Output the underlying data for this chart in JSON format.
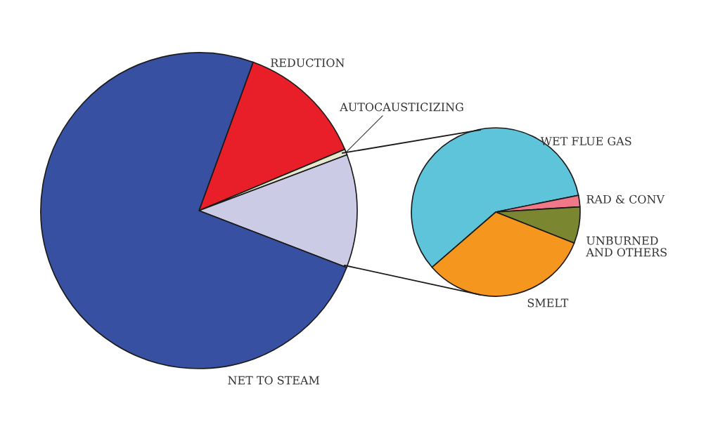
{
  "chart_data": [
    {
      "type": "pie",
      "categories": [
        "REDUCTION",
        "AUTOCAUSTICIZING",
        null,
        "NET TO STEAM"
      ],
      "values": [
        13.1,
        0.6,
        11.6,
        74.7
      ],
      "colors": [
        "#e81e28",
        "#e4e8cc",
        "#cbcbe6",
        "#3850a2"
      ]
    },
    {
      "type": "pie",
      "categories": [
        "WET FLUE GAS",
        "RAD & CONV",
        "UNBURNED\nAND OTHERS",
        "SMELT"
      ],
      "values": [
        58.2,
        2.2,
        7.0,
        32.6
      ],
      "colors": [
        "#5ec4da",
        "#f07888",
        "#7a8630",
        "#f5961e"
      ]
    }
  ]
}
